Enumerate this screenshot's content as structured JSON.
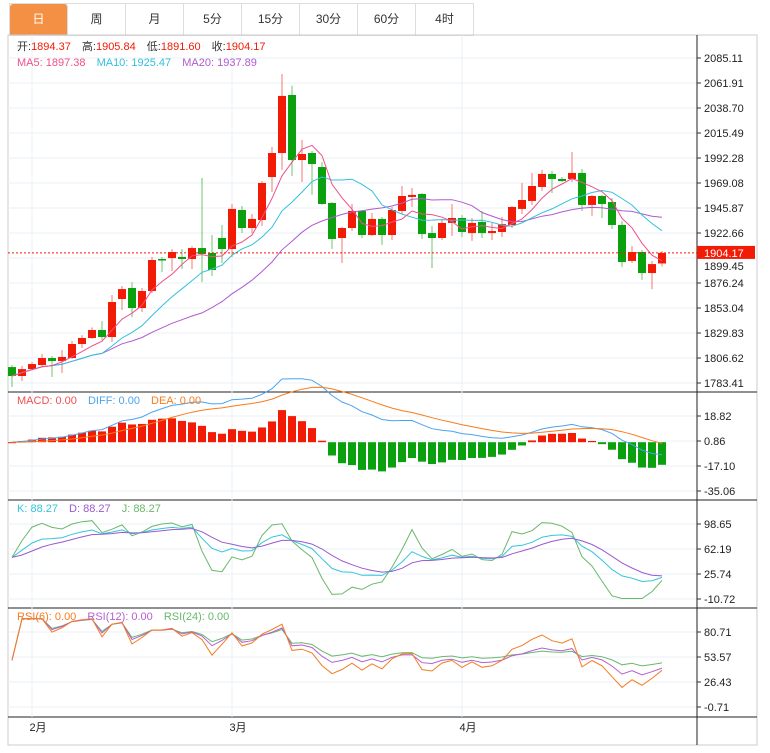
{
  "tabs": [
    {
      "label": "日",
      "active": true
    },
    {
      "label": "周"
    },
    {
      "label": "月"
    },
    {
      "label": "5分"
    },
    {
      "label": "15分"
    },
    {
      "label": "30分"
    },
    {
      "label": "60分"
    },
    {
      "label": "4时"
    }
  ],
  "ohlc": {
    "open_label": "开:",
    "open": "1894.37",
    "high_label": "高:",
    "high": "1905.84",
    "low_label": "低:",
    "low": "1891.60",
    "close_label": "收:",
    "close": "1904.17"
  },
  "ma_legend": {
    "ma5": "MA5: 1897.38",
    "ma10": "MA10: 1925.47",
    "ma20": "MA20: 1937.89"
  },
  "macd_legend": {
    "macd": "MACD: 0.00",
    "diff": "DIFF: 0.00",
    "dea": "DEA: 0.00"
  },
  "kdj_legend": {
    "k": "K: 88.27",
    "d": "D: 88.27",
    "j": "J: 88.27"
  },
  "rsi_legend": {
    "rsi6": "RSI(6): 0.00",
    "rsi12": "RSI(12): 0.00",
    "rsi24": "RSI(24): 0.00"
  },
  "last_price": "1904.17",
  "colors": {
    "up": "#f21b06",
    "down": "#0aa00e",
    "ma5": "#f0508a",
    "ma10": "#32c0dc",
    "ma20": "#b05ad0",
    "diff": "#4aa3f0",
    "dea": "#f97b1c",
    "k": "#33c5dc",
    "d": "#9b59d0",
    "j": "#6ab86a",
    "rsi6": "#f57c20",
    "rsi12": "#b55fd0",
    "rsi24": "#69b86d",
    "tab_active": "#f39043"
  },
  "chart_data": {
    "type": "candlestick",
    "x_labels": [
      {
        "label": "2月",
        "index": 2
      },
      {
        "label": "3月",
        "index": 22
      },
      {
        "label": "4月",
        "index": 45
      }
    ],
    "main_axis": {
      "ticks": [
        "2085.11",
        "2061.91",
        "2038.70",
        "2015.49",
        "1992.28",
        "1969.08",
        "1945.87",
        "1922.66",
        "1899.45",
        "1876.24",
        "1853.04",
        "1829.83",
        "1806.62",
        "1783.41"
      ],
      "ylim": [
        1783.41,
        2085.11
      ]
    },
    "macd_axis": {
      "ticks": [
        "18.82",
        "0.86",
        "-17.10",
        "-35.06"
      ],
      "ylim": [
        -35.06,
        18.82
      ]
    },
    "kdj_axis": {
      "ticks": [
        "98.65",
        "62.19",
        "25.74",
        "-10.72"
      ],
      "ylim": [
        -10.72,
        98.65
      ]
    },
    "rsi_axis": {
      "ticks": [
        "80.71",
        "53.57",
        "26.43",
        "-0.71"
      ],
      "ylim": [
        -0.71,
        80.71
      ]
    },
    "ohlc_fields": [
      "open",
      "high",
      "low",
      "close"
    ],
    "candles": [
      [
        1798.2,
        1800.1,
        1779.7,
        1789.9
      ],
      [
        1789.9,
        1799.3,
        1785.3,
        1796.3
      ],
      [
        1796.3,
        1802.9,
        1795.4,
        1801.0
      ],
      [
        1800.1,
        1810.3,
        1798.2,
        1806.6
      ],
      [
        1806.6,
        1808.5,
        1789.0,
        1803.8
      ],
      [
        1803.8,
        1814.0,
        1792.7,
        1807.6
      ],
      [
        1806.6,
        1822.4,
        1805.8,
        1819.6
      ],
      [
        1819.6,
        1827.9,
        1815.9,
        1825.2
      ],
      [
        1825.2,
        1835.1,
        1824.2,
        1832.6
      ],
      [
        1832.6,
        1840.9,
        1823.3,
        1826.1
      ],
      [
        1826.1,
        1865.1,
        1821.5,
        1858.6
      ],
      [
        1861.4,
        1873.4,
        1851.2,
        1870.6
      ],
      [
        1871.6,
        1877.0,
        1844.6,
        1853.0
      ],
      [
        1853.0,
        1871.6,
        1849.3,
        1868.8
      ],
      [
        1868.8,
        1900.4,
        1866.9,
        1897.6
      ],
      [
        1898.5,
        1900.4,
        1886.4,
        1897.6
      ],
      [
        1899.4,
        1907.8,
        1887.4,
        1905.0
      ],
      [
        1900.4,
        1907.8,
        1889.2,
        1898.5
      ],
      [
        1898.5,
        1910.6,
        1889.2,
        1908.7
      ],
      [
        1908.7,
        1973.7,
        1877.0,
        1903.2
      ],
      [
        1904.1,
        1920.8,
        1882.7,
        1888.3
      ],
      [
        1918.0,
        1930.1,
        1894.8,
        1907.8
      ],
      [
        1907.8,
        1949.6,
        1900.4,
        1945.0
      ],
      [
        1944.0,
        1947.7,
        1922.6,
        1927.3
      ],
      [
        1927.3,
        1940.3,
        1922.6,
        1935.7
      ],
      [
        1934.7,
        1970.9,
        1929.2,
        1969.1
      ],
      [
        1974.6,
        2002.5,
        1960.7,
        1996.9
      ],
      [
        1996.9,
        2070.3,
        1981.2,
        2049.9
      ],
      [
        2050.8,
        2059.2,
        1975.6,
        1990.4
      ],
      [
        1990.4,
        2009.0,
        1970.0,
        1996.0
      ],
      [
        1996.9,
        1998.8,
        1958.0,
        1986.7
      ],
      [
        1983.9,
        1988.5,
        1948.7,
        1949.6
      ],
      [
        1950.5,
        1951.4,
        1907.8,
        1917.1
      ],
      [
        1918.0,
        1928.3,
        1894.8,
        1927.3
      ],
      [
        1927.3,
        1949.6,
        1924.5,
        1943.1
      ],
      [
        1943.1,
        1944.0,
        1918.0,
        1920.8
      ],
      [
        1920.8,
        1941.2,
        1919.9,
        1935.7
      ],
      [
        1935.7,
        1937.5,
        1911.5,
        1920.8
      ],
      [
        1920.8,
        1946.8,
        1916.2,
        1944.0
      ],
      [
        1943.1,
        1966.3,
        1940.3,
        1957.0
      ],
      [
        1956.1,
        1964.4,
        1946.8,
        1958.0
      ],
      [
        1958.9,
        1959.8,
        1917.1,
        1921.7
      ],
      [
        1922.6,
        1929.2,
        1890.2,
        1918.0
      ],
      [
        1918.0,
        1935.6,
        1916.2,
        1932.0
      ],
      [
        1932.0,
        1949.6,
        1919.9,
        1936.6
      ],
      [
        1936.6,
        1939.4,
        1918.9,
        1923.6
      ],
      [
        1922.6,
        1936.6,
        1915.3,
        1932.0
      ],
      [
        1932.9,
        1943.1,
        1918.0,
        1922.6
      ],
      [
        1922.6,
        1932.0,
        1916.2,
        1924.5
      ],
      [
        1923.6,
        1937.5,
        1918.9,
        1930.9
      ],
      [
        1930.1,
        1947.7,
        1927.3,
        1946.8
      ],
      [
        1945.0,
        1969.1,
        1940.3,
        1953.3
      ],
      [
        1952.4,
        1978.4,
        1948.7,
        1966.3
      ],
      [
        1965.4,
        1981.2,
        1961.7,
        1977.5
      ],
      [
        1977.5,
        1980.2,
        1959.8,
        1972.8
      ],
      [
        1972.8,
        1974.6,
        1970.0,
        1970.9
      ],
      [
        1972.8,
        1997.9,
        1970.0,
        1978.4
      ],
      [
        1978.4,
        1982.1,
        1943.1,
        1948.7
      ],
      [
        1948.7,
        1958.0,
        1938.5,
        1957.0
      ],
      [
        1957.0,
        1958.0,
        1936.6,
        1949.6
      ],
      [
        1951.4,
        1955.2,
        1926.4,
        1930.1
      ],
      [
        1930.1,
        1933.8,
        1891.1,
        1895.7
      ],
      [
        1896.7,
        1910.6,
        1894.8,
        1905.0
      ],
      [
        1905.0,
        1906.9,
        1879.2,
        1885.5
      ],
      [
        1885.5,
        1896.7,
        1870.5,
        1893.8
      ],
      [
        1894.37,
        1905.84,
        1891.6,
        1904.17
      ]
    ]
  }
}
